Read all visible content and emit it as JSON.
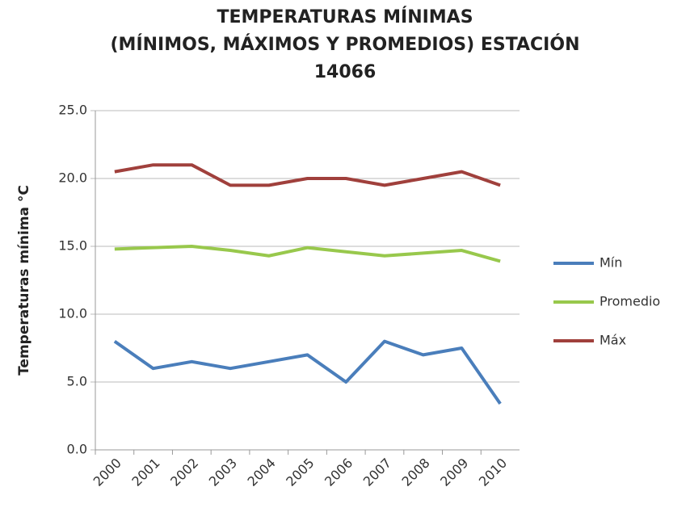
{
  "chart_data": {
    "type": "line",
    "title": [
      "TEMPERATURAS MÍNIMAS",
      "(MÍNIMOS, MÁXIMOS Y PROMEDIOS) ESTACIÓN",
      "14066"
    ],
    "y_label": "Temperaturas mínima °C",
    "categories": [
      "2000",
      "2001",
      "2002",
      "2003",
      "2004",
      "2005",
      "2006",
      "2007",
      "2008",
      "2009",
      "2010"
    ],
    "series": [
      {
        "name": "Mín",
        "color": "#4a7ebb",
        "values": [
          8.0,
          6.0,
          6.5,
          6.0,
          6.5,
          7.0,
          5.0,
          8.0,
          7.0,
          7.5,
          3.4
        ]
      },
      {
        "name": "Promedio",
        "color": "#98c84c",
        "values": [
          14.8,
          14.9,
          15.0,
          14.7,
          14.3,
          14.9,
          14.6,
          14.3,
          14.5,
          14.7,
          13.9
        ]
      },
      {
        "name": "Máx",
        "color": "#a0403c",
        "values": [
          20.5,
          21.0,
          21.0,
          19.5,
          19.5,
          20.0,
          20.0,
          19.5,
          20.0,
          20.5,
          19.5
        ]
      }
    ],
    "ylim": [
      0,
      25
    ],
    "yticks": [
      {
        "value": 0,
        "label": "0.0"
      },
      {
        "value": 5,
        "label": "5.0"
      },
      {
        "value": 10,
        "label": "10.0"
      },
      {
        "value": 15,
        "label": "15.0"
      },
      {
        "value": 20,
        "label": "20.0"
      },
      {
        "value": 25,
        "label": "25.0"
      }
    ],
    "grid": true,
    "legend": "right"
  }
}
